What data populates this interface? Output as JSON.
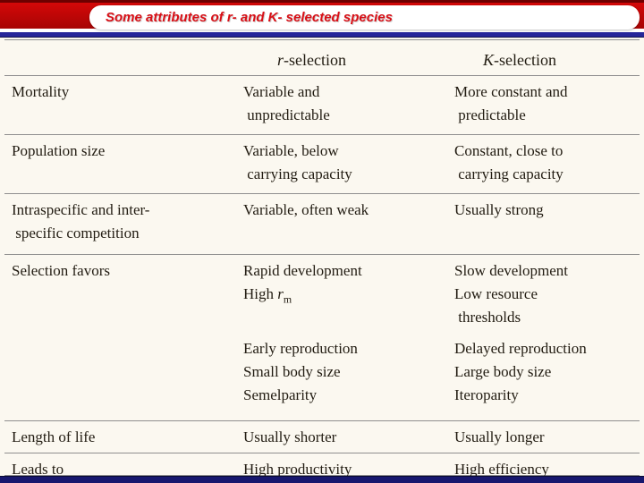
{
  "slide": {
    "title": "Some attributes of r- and K- selected species"
  },
  "table": {
    "header": {
      "col1": "",
      "r_italic": "r",
      "r_rest": "-selection",
      "k_italic": "K",
      "k_rest": "-selection"
    },
    "rows": [
      {
        "attribute": "Mortality",
        "r": "Variable and\n unpredictable",
        "k": "More constant and\n predictable"
      },
      {
        "attribute": "Population size",
        "r": "Variable, below\n carrying capacity",
        "k": "Constant, close to\n carrying capacity"
      },
      {
        "attribute": "Intraspecific and inter-\n specific competition",
        "r": "Variable, often weak",
        "k": "Usually strong"
      },
      {
        "attribute": "Selection favors",
        "r_line1": "Rapid development",
        "r_line2_prefix": "High ",
        "r_line2_var": "r",
        "r_line2_sub": "m",
        "k": "Slow development\nLow resource\n thresholds"
      },
      {
        "attribute": "",
        "r": "Early reproduction\nSmall body size\nSemelparity",
        "k": "Delayed reproduction\nLarge body size\nIteroparity"
      },
      {
        "attribute": "Length of life",
        "r": "Usually shorter",
        "k": "Usually longer"
      },
      {
        "attribute": "Leads to",
        "r": "High productivity",
        "k": "High efficiency"
      }
    ]
  }
}
